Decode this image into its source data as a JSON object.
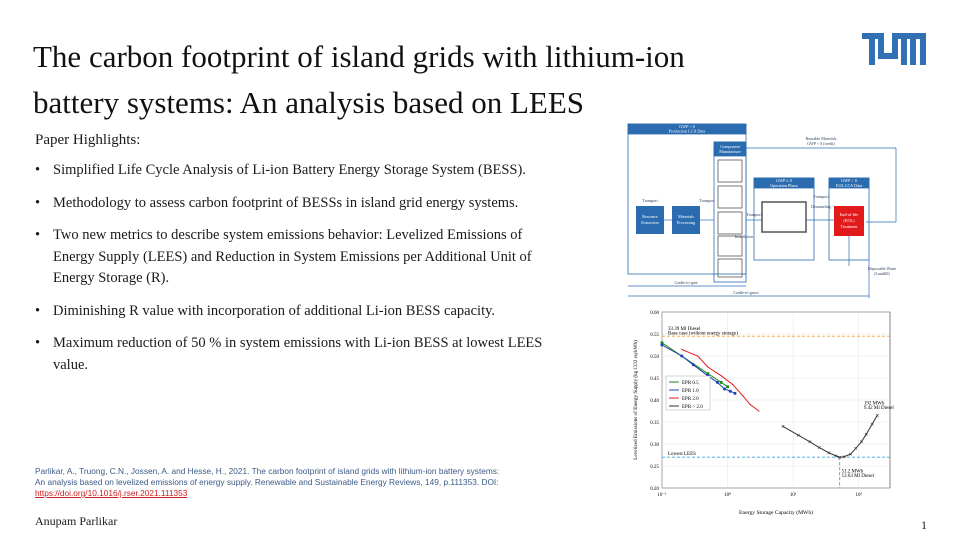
{
  "slide": {
    "title_line1": "The carbon footprint of island grids with lithium-ion",
    "title_line2": "battery systems: An analysis based on LEES",
    "highlights_label": "Paper Highlights:",
    "bullets": [
      "Simplified Life Cycle Analysis of Li-ion Battery Energy Storage System (BESS).",
      "Methodology to assess carbon footprint of BESSs in island grid energy systems.",
      "Two new metrics to describe system emissions behavior: Levelized Emissions of Energy Supply (LEES) and Reduction in System Emissions per Additional Unit of Energy Storage (R).",
      "Diminishing R value with incorporation of additional Li-ion BESS capacity.",
      "Maximum reduction of 50 % in system emissions with Li-ion BESS at lowest LEES value."
    ],
    "citation_text": "Parlikar, A., Truong, C.N., Jossen, A. and Hesse, H., 2021. The carbon footprint of island grids with lithium-ion battery systems: An analysis based on levelized emissions of energy supply. Renewable and Sustainable Energy Reviews, 149, p.111353. DOI:",
    "citation_doi": "https://doi.org/10.1016/j.rser.2021.111353",
    "author": "Anupam Parlikar",
    "page_number": "1"
  },
  "lca_diagram": {
    "top_box": "GWP > 0\nProduction LCA Data",
    "reusable": "Reusable Materials\nGWP < 0 (credit)",
    "component": "Component\nManufacture",
    "resource": "Resource\nExtraction",
    "materials": "Materials\nProcessing",
    "transport": "Transport",
    "installation": "Installation",
    "operation": "GWP ≥ 0\nOperation Phase",
    "eol_header": "GWP > 0\nEOL LCA Data",
    "eol_box": "End-of-life\n(EOL)\nTreatment",
    "disposable": "Disposable Waste\n(Landfill)",
    "cradle_gate": "Cradle-to-gate",
    "cradle_grave": "Cradle-to-grave"
  },
  "chart_data": {
    "type": "scatter",
    "title": "",
    "xlabel": "Energy Storage Capacity (MWh)",
    "ylabel": "Levelized Emissions of Energy Supply (kg CO2 eq/kWh)",
    "xscale": "log",
    "xlim": [
      0.1,
      300
    ],
    "ylim": [
      0.2,
      0.6
    ],
    "yticks": [
      0.2,
      0.25,
      0.3,
      0.35,
      0.4,
      0.45,
      0.5,
      0.55,
      0.6
    ],
    "xticks": [
      {
        "value": 0.1,
        "label": "10⁻¹"
      },
      {
        "value": 1,
        "label": "10⁰"
      },
      {
        "value": 10,
        "label": "10¹"
      },
      {
        "value": 100,
        "label": "10²"
      }
    ],
    "grid": true,
    "legend_position": "center-left",
    "series": [
      {
        "name": "EPR 0.5",
        "color": "#1a8a1a",
        "values": [
          [
            0.1,
            0.53
          ],
          [
            0.5,
            0.46
          ],
          [
            0.8,
            0.44
          ],
          [
            1.0,
            0.43
          ]
        ]
      },
      {
        "name": "EPR 1.0",
        "color": "#1f3fb4",
        "values": [
          [
            0.1,
            0.525
          ],
          [
            0.2,
            0.5
          ],
          [
            0.3,
            0.48
          ],
          [
            0.5,
            0.455
          ],
          [
            0.7,
            0.44
          ],
          [
            0.9,
            0.425
          ],
          [
            1.1,
            0.42
          ],
          [
            1.3,
            0.415
          ]
        ]
      },
      {
        "name": "EPR 2.0",
        "color": "#e31a1c",
        "values": [
          [
            0.2,
            0.515
          ],
          [
            0.35,
            0.5
          ],
          [
            0.5,
            0.475
          ],
          [
            0.8,
            0.455
          ],
          [
            1.2,
            0.435
          ],
          [
            1.7,
            0.41
          ],
          [
            2.2,
            0.39
          ],
          [
            3.0,
            0.375
          ]
        ]
      },
      {
        "name": "EPR > 2.0",
        "color": "#333333",
        "values": [
          [
            7,
            0.34
          ],
          [
            12,
            0.32
          ],
          [
            18,
            0.305
          ],
          [
            25,
            0.292
          ],
          [
            35,
            0.28
          ],
          [
            45,
            0.273
          ],
          [
            51.2,
            0.27
          ],
          [
            60,
            0.271
          ],
          [
            75,
            0.277
          ],
          [
            90,
            0.29
          ],
          [
            110,
            0.305
          ],
          [
            130,
            0.322
          ],
          [
            160,
            0.345
          ],
          [
            192,
            0.365
          ]
        ]
      }
    ],
    "reference_lines": [
      {
        "label": "33.39 Ml Diesel",
        "label2": "Base case (without energy storage)",
        "y": 0.545,
        "color": "#f0a030"
      },
      {
        "label": "Lowest LEES",
        "y": 0.27,
        "color": "#2aa9e0"
      }
    ],
    "vertical_line": {
      "x": 51.2,
      "color": "#2aa9e0"
    },
    "annotations": [
      {
        "text": "192 MWh",
        "text2": "9.42 Ml Diesel"
      },
      {
        "text": "51.2 MWh",
        "text2": "12.63 Ml Diesel"
      }
    ]
  }
}
